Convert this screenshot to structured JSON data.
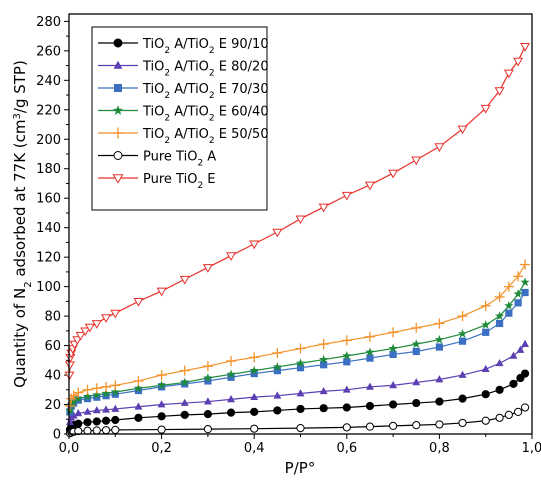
{
  "chart_data": {
    "type": "line",
    "xlabel": "P/P°",
    "ylabel_parts": {
      "a": "Quantity of N",
      "sub": "2",
      "b": " adsorbed at 77K (cm",
      "sup": "3",
      "c": "/g STP)"
    },
    "xlim": [
      0,
      1.0
    ],
    "ylim": [
      0,
      285
    ],
    "x_ticks": [
      0,
      0.2,
      0.4,
      0.6,
      0.8,
      1.0
    ],
    "x_tick_labels": [
      "0,0",
      "0,2",
      "0,4",
      "0,6",
      "0,8",
      "1,0"
    ],
    "y_ticks": [
      0,
      20,
      40,
      60,
      80,
      100,
      120,
      140,
      160,
      180,
      200,
      220,
      240,
      260,
      280
    ],
    "y_tick_labels": [
      "0",
      "20",
      "40",
      "60",
      "80",
      "100",
      "120",
      "140",
      "160",
      "180",
      "200",
      "220",
      "240",
      "260",
      "280"
    ],
    "grid": false,
    "legend_placement": "top-left",
    "legend": [
      {
        "main": "TiO",
        "sub": "2",
        "mid": " A/TiO",
        "sub2": "2",
        "tail": " E 90/10"
      },
      {
        "main": "TiO",
        "sub": "2",
        "mid": " A/TiO",
        "sub2": "2",
        "tail": " E 80/20"
      },
      {
        "main": "TiO",
        "sub": "2",
        "mid": " A/TiO",
        "sub2": "2",
        "tail": " E 70/30"
      },
      {
        "main": "TiO",
        "sub": "2",
        "mid": " A/TiO",
        "sub2": "2",
        "tail": " E 60/40"
      },
      {
        "main": "TiO",
        "sub": "2",
        "mid": " A/TiO",
        "sub2": "2",
        "tail": " E 50/50"
      },
      {
        "main": "Pure TiO",
        "sub": "2",
        "mid": " A",
        "sub2": "",
        "tail": ""
      },
      {
        "main": "Pure TiO",
        "sub": "2",
        "mid": " E",
        "sub2": "",
        "tail": ""
      }
    ],
    "series": [
      {
        "color": "#000000",
        "marker": "circle-filled",
        "x": [
          0.002,
          0.005,
          0.01,
          0.02,
          0.04,
          0.06,
          0.08,
          0.1,
          0.15,
          0.2,
          0.25,
          0.3,
          0.35,
          0.4,
          0.45,
          0.5,
          0.55,
          0.6,
          0.65,
          0.7,
          0.75,
          0.8,
          0.85,
          0.9,
          0.93,
          0.96,
          0.975,
          0.985
        ],
        "y": [
          3,
          5,
          6,
          7,
          8,
          8.5,
          9,
          9.5,
          11,
          12,
          13,
          13.5,
          14.5,
          15,
          16,
          17,
          17.5,
          18,
          19,
          20,
          21,
          22,
          24,
          27,
          30,
          34,
          38,
          41
        ]
      },
      {
        "color": "#5b3fb3",
        "marker": "triangle-up-filled",
        "x": [
          0.002,
          0.005,
          0.01,
          0.02,
          0.04,
          0.06,
          0.08,
          0.1,
          0.15,
          0.2,
          0.25,
          0.3,
          0.35,
          0.4,
          0.45,
          0.5,
          0.55,
          0.6,
          0.65,
          0.7,
          0.75,
          0.8,
          0.85,
          0.9,
          0.93,
          0.96,
          0.975,
          0.985
        ],
        "y": [
          8,
          11,
          12.5,
          14,
          15,
          16,
          16.5,
          17,
          18.5,
          20,
          21,
          22,
          23.5,
          25,
          26,
          27.5,
          29,
          30,
          32,
          33,
          35,
          37,
          40,
          44,
          48,
          53,
          57,
          61
        ]
      },
      {
        "color": "#3b6fc4",
        "marker": "square-filled",
        "x": [
          0.002,
          0.005,
          0.01,
          0.02,
          0.04,
          0.06,
          0.08,
          0.1,
          0.15,
          0.2,
          0.25,
          0.3,
          0.35,
          0.4,
          0.45,
          0.5,
          0.55,
          0.6,
          0.65,
          0.7,
          0.75,
          0.8,
          0.85,
          0.9,
          0.93,
          0.95,
          0.97,
          0.985
        ],
        "y": [
          15,
          19,
          21,
          23,
          24,
          25,
          26,
          27,
          29.5,
          32,
          34,
          36,
          38.5,
          41,
          43,
          45,
          47,
          49,
          51.5,
          54,
          56,
          59,
          63,
          69,
          75,
          82,
          89,
          96
        ]
      },
      {
        "color": "#1e8a3a",
        "marker": "star-filled",
        "x": [
          0.002,
          0.005,
          0.01,
          0.02,
          0.04,
          0.06,
          0.08,
          0.1,
          0.15,
          0.2,
          0.25,
          0.3,
          0.35,
          0.4,
          0.45,
          0.5,
          0.55,
          0.6,
          0.65,
          0.7,
          0.75,
          0.8,
          0.85,
          0.9,
          0.93,
          0.95,
          0.97,
          0.985
        ],
        "y": [
          16,
          20,
          22,
          24,
          25.5,
          26.5,
          27.5,
          28.5,
          31,
          33,
          35,
          38,
          40.5,
          43,
          45.5,
          48,
          50.5,
          53,
          55.5,
          58,
          61,
          64,
          68,
          74,
          80,
          87,
          95,
          103
        ]
      },
      {
        "color": "#f5922a",
        "marker": "plus",
        "x": [
          0.002,
          0.005,
          0.01,
          0.02,
          0.04,
          0.06,
          0.08,
          0.1,
          0.15,
          0.2,
          0.25,
          0.3,
          0.35,
          0.4,
          0.45,
          0.5,
          0.55,
          0.6,
          0.65,
          0.7,
          0.75,
          0.8,
          0.85,
          0.9,
          0.93,
          0.95,
          0.97,
          0.985
        ],
        "y": [
          19,
          24,
          26,
          28,
          30,
          31,
          32,
          33,
          36,
          40,
          43,
          46,
          49.5,
          52,
          55,
          58,
          61,
          63.5,
          66,
          69,
          72,
          75,
          80,
          87,
          93,
          100,
          107,
          115
        ]
      },
      {
        "color": "#000000",
        "marker": "circle-open",
        "x": [
          0.002,
          0.005,
          0.01,
          0.02,
          0.04,
          0.06,
          0.08,
          0.1,
          0.2,
          0.3,
          0.4,
          0.5,
          0.6,
          0.65,
          0.7,
          0.75,
          0.8,
          0.85,
          0.9,
          0.93,
          0.95,
          0.97,
          0.985
        ],
        "y": [
          0.5,
          1,
          1.5,
          2,
          2.2,
          2.4,
          2.6,
          2.8,
          3,
          3.3,
          3.6,
          4,
          4.5,
          5,
          5.5,
          6,
          6.5,
          7.5,
          9,
          11,
          13,
          15,
          18
        ]
      },
      {
        "color": "#e8302a",
        "marker": "triangle-down-open",
        "x": [
          0.001,
          0.002,
          0.003,
          0.005,
          0.008,
          0.012,
          0.018,
          0.025,
          0.035,
          0.045,
          0.06,
          0.08,
          0.1,
          0.15,
          0.2,
          0.25,
          0.3,
          0.35,
          0.4,
          0.45,
          0.5,
          0.55,
          0.6,
          0.65,
          0.7,
          0.75,
          0.8,
          0.85,
          0.9,
          0.93,
          0.95,
          0.97,
          0.985
        ],
        "y": [
          40,
          47,
          52,
          55,
          58,
          61,
          64,
          67,
          70,
          72.5,
          75,
          79,
          82,
          90,
          97,
          105,
          113,
          121,
          129,
          137,
          146,
          154,
          162,
          169,
          177,
          186,
          195,
          207,
          221,
          233,
          245,
          253,
          263
        ]
      }
    ]
  }
}
